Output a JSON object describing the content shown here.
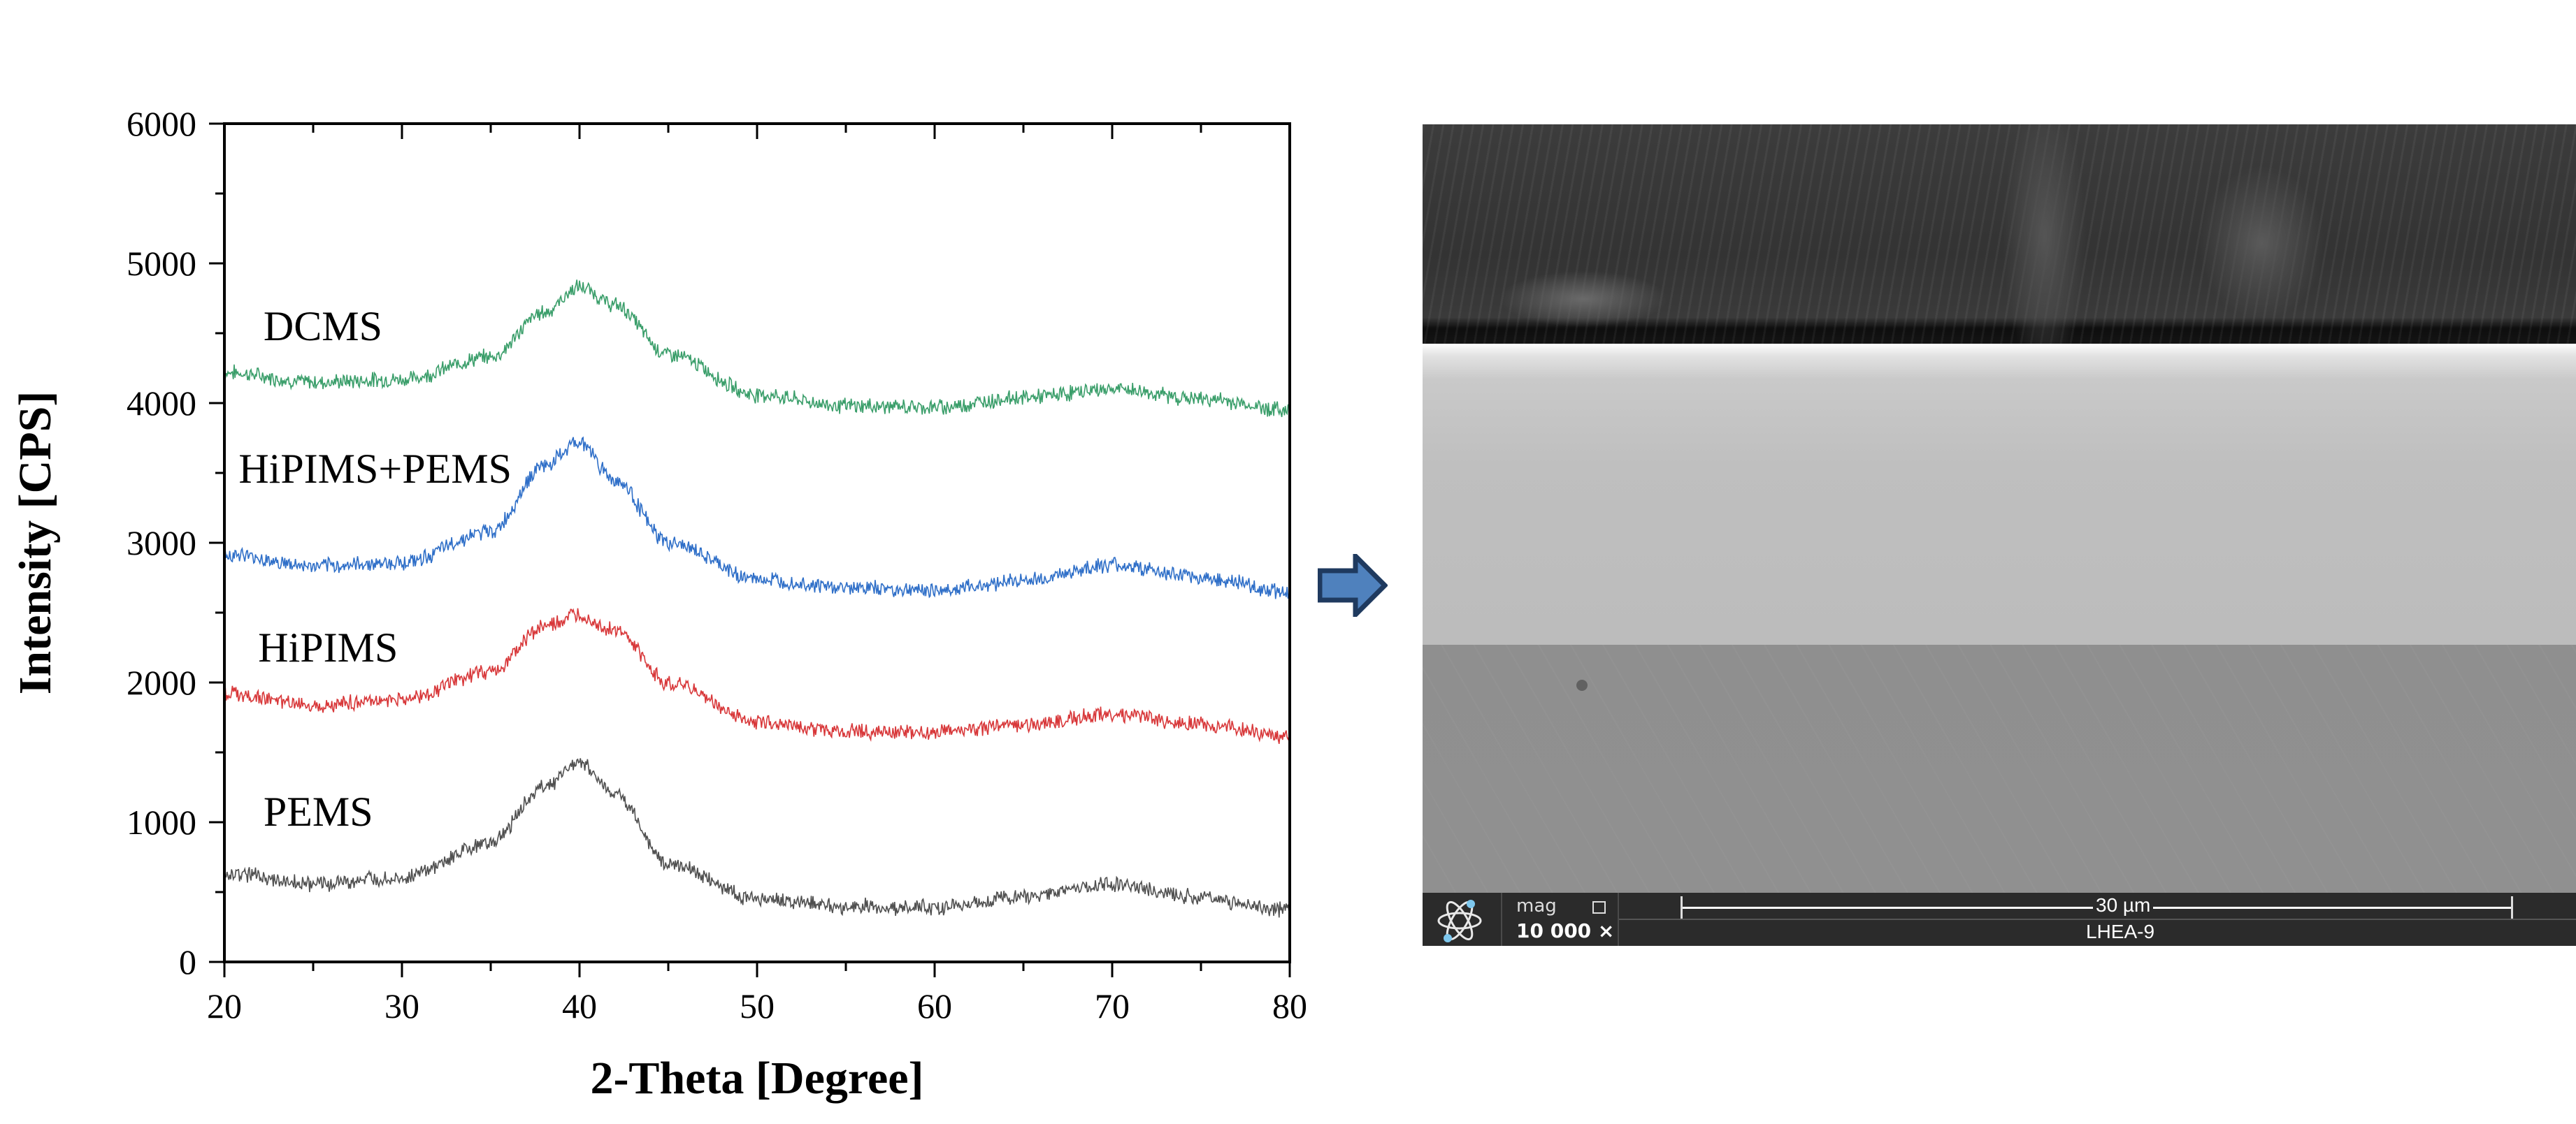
{
  "chart_data": {
    "type": "line",
    "title": "",
    "xlabel": "2-Theta [Degree]",
    "ylabel": "Intensity [CPS]",
    "xlim": [
      20,
      80
    ],
    "ylim": [
      0,
      6000
    ],
    "xticks": [
      20,
      30,
      40,
      50,
      60,
      70,
      80
    ],
    "yticks": [
      0,
      1000,
      2000,
      3000,
      4000,
      5000,
      6000
    ],
    "grid": false,
    "legend": "inline text labels",
    "series": [
      {
        "name": "DCMS",
        "color": "#3a9e6a",
        "label_pos": [
          22.2,
          4450
        ],
        "x": [
          20,
          25,
          30,
          35,
          38,
          40,
          42,
          45,
          50,
          55,
          60,
          65,
          70,
          75,
          80
        ],
        "y": [
          4220,
          4150,
          4170,
          4330,
          4650,
          4830,
          4700,
          4350,
          4060,
          3980,
          3970,
          4040,
          4100,
          4030,
          3950
        ]
      },
      {
        "name": "HiPIMS+PEMS",
        "color": "#2f6fc8",
        "label_pos": [
          20.8,
          3430
        ],
        "x": [
          20,
          25,
          30,
          35,
          38,
          40,
          42,
          45,
          50,
          55,
          60,
          65,
          70,
          75,
          80
        ],
        "y": [
          2920,
          2830,
          2860,
          3080,
          3550,
          3720,
          3450,
          3000,
          2740,
          2680,
          2660,
          2730,
          2840,
          2750,
          2650
        ]
      },
      {
        "name": "HiPIMS",
        "color": "#d8383a",
        "label_pos": [
          21.9,
          2150
        ],
        "x": [
          20,
          25,
          30,
          35,
          38,
          40,
          42,
          45,
          50,
          55,
          60,
          65,
          70,
          75,
          80
        ],
        "y": [
          1920,
          1840,
          1880,
          2080,
          2400,
          2480,
          2370,
          2000,
          1720,
          1650,
          1640,
          1700,
          1770,
          1700,
          1610
        ]
      },
      {
        "name": "PEMS",
        "color": "#505050",
        "label_pos": [
          22.2,
          975
        ],
        "x": [
          20,
          25,
          30,
          35,
          38,
          40,
          42,
          45,
          50,
          55,
          60,
          65,
          70,
          75,
          80
        ],
        "y": [
          640,
          560,
          600,
          850,
          1250,
          1430,
          1200,
          700,
          450,
          400,
          390,
          470,
          560,
          460,
          370
        ]
      }
    ]
  },
  "arrow": {
    "icon": "right-arrow-icon",
    "fill": "#4f81bd",
    "stroke": "#1f3a5f"
  },
  "sem": {
    "info_bar": {
      "logo_icon": "atom-icon",
      "mag_label": "mag",
      "mag_value": "10 000 ×",
      "scale_bar_text": "30 µm",
      "sample_name": "LHEA-9"
    }
  }
}
